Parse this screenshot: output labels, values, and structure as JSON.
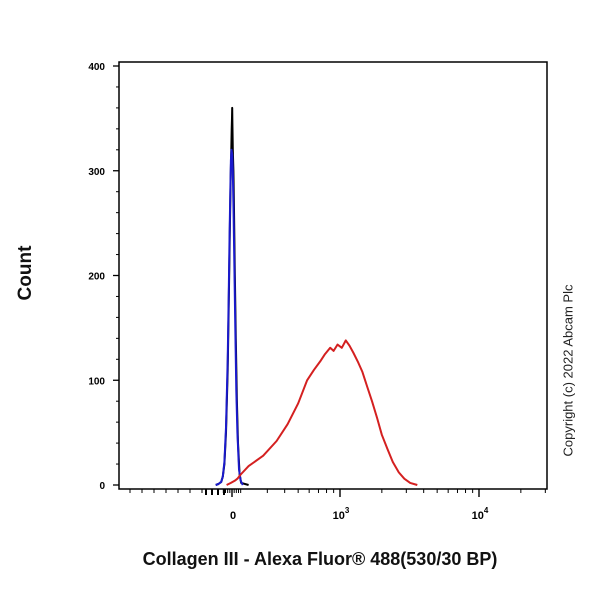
{
  "chart_data": {
    "type": "histogram",
    "xlabel": "Collagen III - Alexa Fluor® 488(530/30 BP)",
    "ylabel": "Count",
    "ylim": [
      0,
      400
    ],
    "x_scale": "biexponential",
    "x_ticks": [
      {
        "value": 0,
        "base": "0",
        "exp": ""
      },
      {
        "value": 1000,
        "base": "10",
        "exp": "3"
      },
      {
        "value": 10000,
        "base": "10",
        "exp": "4"
      }
    ],
    "y_ticks": [
      0,
      100,
      200,
      300,
      400
    ],
    "series": [
      {
        "color": "#000000",
        "points": [
          [
            -300,
            0
          ],
          [
            -250,
            1
          ],
          [
            -200,
            3
          ],
          [
            -170,
            8
          ],
          [
            -140,
            20
          ],
          [
            -110,
            50
          ],
          [
            -80,
            110
          ],
          [
            -60,
            170
          ],
          [
            -40,
            240
          ],
          [
            -25,
            290
          ],
          [
            -12,
            320
          ],
          [
            -5,
            340
          ],
          [
            0,
            350
          ],
          [
            3,
            360
          ],
          [
            8,
            345
          ],
          [
            15,
            320
          ],
          [
            25,
            300
          ],
          [
            35,
            270
          ],
          [
            50,
            210
          ],
          [
            70,
            140
          ],
          [
            90,
            80
          ],
          [
            110,
            40
          ],
          [
            140,
            10
          ],
          [
            170,
            2
          ],
          [
            220,
            0
          ]
        ]
      },
      {
        "color": "#1a1acc",
        "points": [
          [
            -300,
            0
          ],
          [
            -250,
            1
          ],
          [
            -200,
            3
          ],
          [
            -170,
            8
          ],
          [
            -140,
            22
          ],
          [
            -110,
            55
          ],
          [
            -80,
            120
          ],
          [
            -60,
            180
          ],
          [
            -45,
            240
          ],
          [
            -30,
            285
          ],
          [
            -20,
            310
          ],
          [
            -10,
            320
          ],
          [
            -3,
            318
          ],
          [
            5,
            315
          ],
          [
            15,
            300
          ],
          [
            25,
            270
          ],
          [
            40,
            220
          ],
          [
            60,
            150
          ],
          [
            80,
            90
          ],
          [
            100,
            50
          ],
          [
            130,
            15
          ],
          [
            160,
            4
          ],
          [
            200,
            0
          ]
        ]
      },
      {
        "color": "#d42020",
        "points": [
          [
            -100,
            0
          ],
          [
            -20,
            2
          ],
          [
            50,
            4
          ],
          [
            100,
            6
          ],
          [
            160,
            10
          ],
          [
            220,
            18
          ],
          [
            280,
            28
          ],
          [
            350,
            42
          ],
          [
            420,
            58
          ],
          [
            500,
            78
          ],
          [
            580,
            100
          ],
          [
            650,
            110
          ],
          [
            720,
            118
          ],
          [
            780,
            125
          ],
          [
            850,
            131
          ],
          [
            900,
            128
          ],
          [
            960,
            134
          ],
          [
            1030,
            131
          ],
          [
            1100,
            138
          ],
          [
            1170,
            133
          ],
          [
            1250,
            126
          ],
          [
            1340,
            118
          ],
          [
            1450,
            108
          ],
          [
            1560,
            95
          ],
          [
            1700,
            80
          ],
          [
            1850,
            64
          ],
          [
            2000,
            48
          ],
          [
            2200,
            34
          ],
          [
            2400,
            22
          ],
          [
            2650,
            12
          ],
          [
            2900,
            6
          ],
          [
            3200,
            2
          ],
          [
            3600,
            0
          ]
        ]
      }
    ]
  },
  "copyright": "Copyright (c) 2022 Abcam Plc"
}
